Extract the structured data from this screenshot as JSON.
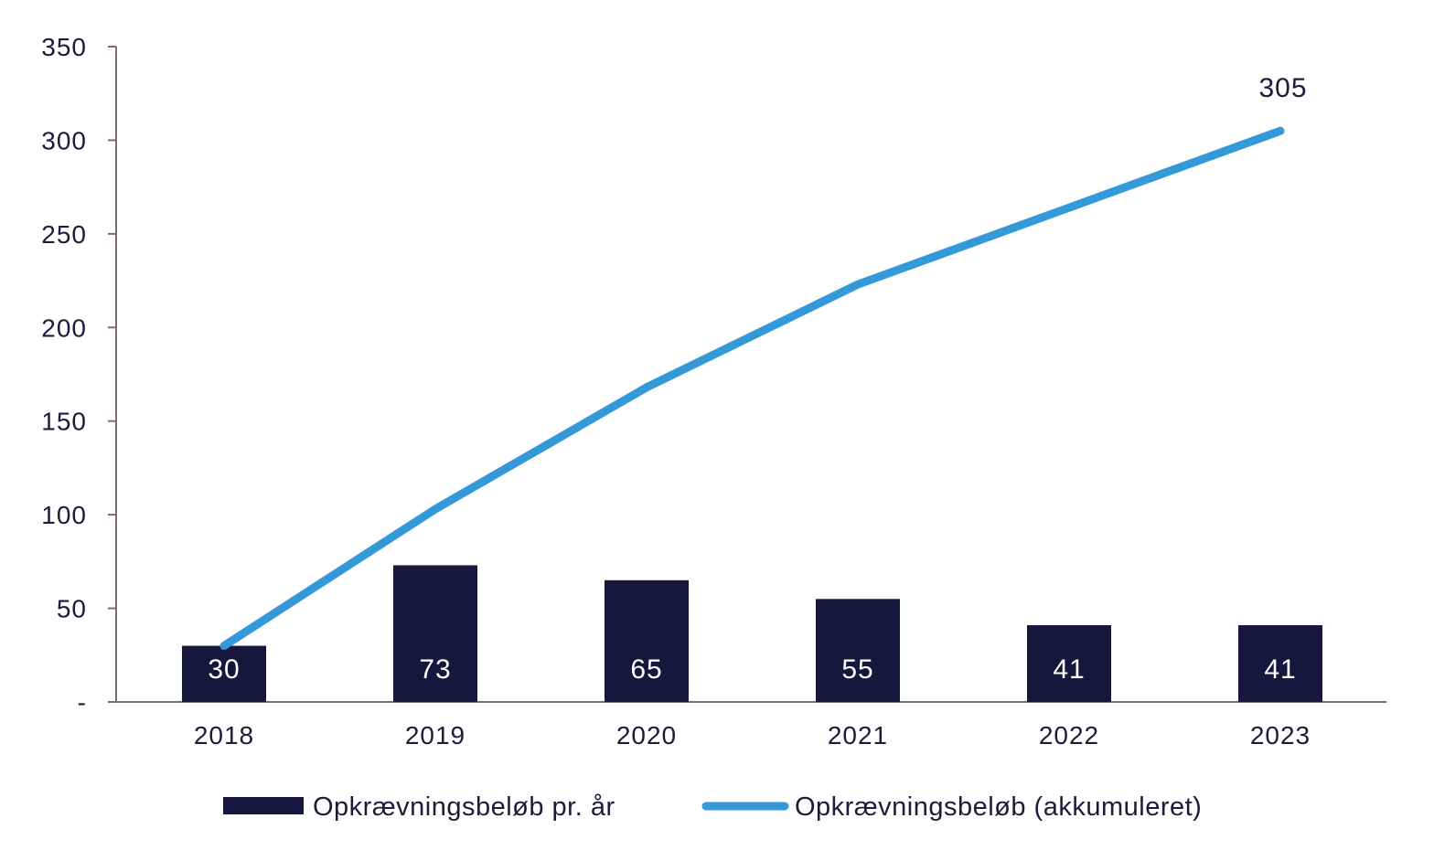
{
  "chart_data": {
    "type": "bar+line",
    "categories": [
      "2018",
      "2019",
      "2020",
      "2021",
      "2022",
      "2023"
    ],
    "series": [
      {
        "name": "Opkrævningsbeløb pr. år",
        "type": "bar",
        "color": "#17163d",
        "values": [
          30,
          73,
          65,
          55,
          41,
          41
        ],
        "data_labels": [
          "30",
          "73",
          "65",
          "55",
          "41",
          "41"
        ]
      },
      {
        "name": "Opkrævningsbeløb (akkumuleret)",
        "type": "line",
        "color": "#3499d9",
        "values": [
          30,
          103,
          168,
          223,
          264,
          305
        ],
        "end_label": "305"
      }
    ],
    "y_ticks": [
      0,
      50,
      100,
      150,
      200,
      250,
      300,
      350
    ],
    "y_tick_labels": [
      "-",
      "50",
      "100",
      "150",
      "200",
      "250",
      "300",
      "350"
    ],
    "ylim": [
      0,
      350
    ],
    "grid": false,
    "legend_position": "bottom",
    "axis_color": "#7a6a6a"
  }
}
